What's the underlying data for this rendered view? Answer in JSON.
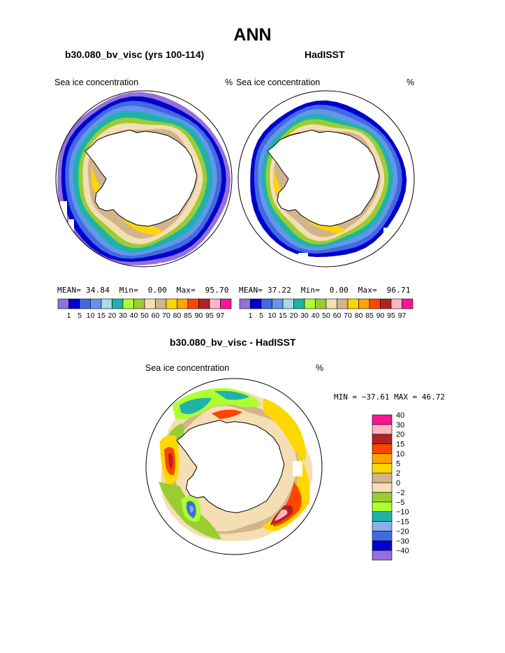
{
  "title": "ANN",
  "panels": [
    {
      "id": "model",
      "case_title": "b30.080_bv_visc (yrs 100-114)",
      "variable_label": "Sea ice concentration",
      "units": "%",
      "stats": {
        "mean_label": "MEAN=",
        "mean": "34.84",
        "min_label": "Min=",
        "min": "0.00",
        "max_label": "Max=",
        "max": "95.70"
      }
    },
    {
      "id": "obs",
      "case_title": "HadISST",
      "variable_label": "Sea ice concentration",
      "units": "%",
      "stats": {
        "mean_label": "MEAN=",
        "mean": "37.22",
        "min_label": "Min=",
        "min": "0.00",
        "max_label": "Max=",
        "max": "96.71"
      }
    },
    {
      "id": "diff",
      "case_title": "b30.080_bv_visc - HadISST",
      "variable_label": "Sea ice concentration",
      "units": "%",
      "stats_text": "MIN = −37.61 MAX =  46.72"
    }
  ],
  "chart_data": [
    {
      "type": "heatmap",
      "projection": "south-polar-stereographic",
      "title": "b30.080_bv_visc (yrs 100-114)",
      "variable": "Sea ice concentration",
      "units": "%",
      "mean": 34.84,
      "min": 0.0,
      "max": 95.7,
      "colorbar": {
        "levels": [
          1,
          5,
          10,
          15,
          20,
          30,
          40,
          50,
          60,
          70,
          80,
          85,
          90,
          95,
          97
        ],
        "colors": [
          "#9370DB",
          "#0000CD",
          "#4169E1",
          "#6495ED",
          "#ADD8E6",
          "#20B2AA",
          "#ADFF2F",
          "#9ACD32",
          "#F5DEB3",
          "#D2B48C",
          "#FFD700",
          "#FFA500",
          "#FF4500",
          "#B22222",
          "#FFB6C1",
          "#FF1493"
        ]
      },
      "rings": [
        {
          "value": 3,
          "color": "#9370DB"
        },
        {
          "value": 7,
          "color": "#0000CD"
        },
        {
          "value": 12,
          "color": "#4169E1"
        },
        {
          "value": 17,
          "color": "#6495ED"
        },
        {
          "value": 25,
          "color": "#20B2AA"
        },
        {
          "value": 45,
          "color": "#9ACD32"
        },
        {
          "value": 55,
          "color": "#F5DEB3"
        },
        {
          "value": 65,
          "color": "#D2B48C"
        }
      ]
    },
    {
      "type": "heatmap",
      "projection": "south-polar-stereographic",
      "title": "HadISST",
      "variable": "Sea ice concentration",
      "units": "%",
      "mean": 37.22,
      "min": 0.0,
      "max": 96.71,
      "colorbar": {
        "levels": [
          1,
          5,
          10,
          15,
          20,
          30,
          40,
          50,
          60,
          70,
          80,
          85,
          90,
          95,
          97
        ],
        "colors": [
          "#9370DB",
          "#0000CD",
          "#4169E1",
          "#6495ED",
          "#ADD8E6",
          "#20B2AA",
          "#ADFF2F",
          "#9ACD32",
          "#F5DEB3",
          "#D2B48C",
          "#FFD700",
          "#FFA500",
          "#FF4500",
          "#B22222",
          "#FFB6C1",
          "#FF1493"
        ]
      },
      "rings": [
        {
          "value": 7,
          "color": "#0000CD"
        },
        {
          "value": 12,
          "color": "#4169E1"
        },
        {
          "value": 17,
          "color": "#6495ED"
        },
        {
          "value": 25,
          "color": "#20B2AA"
        },
        {
          "value": 45,
          "color": "#9ACD32"
        },
        {
          "value": 55,
          "color": "#F5DEB3"
        },
        {
          "value": 65,
          "color": "#D2B48C"
        }
      ]
    },
    {
      "type": "heatmap",
      "projection": "south-polar-stereographic",
      "title": "b30.080_bv_visc - HadISST",
      "variable": "Sea ice concentration",
      "units": "%",
      "min": -37.61,
      "max": 46.72,
      "colorbar": {
        "levels": [
          "−40",
          "−30",
          "−20",
          "−15",
          "−10",
          "−5",
          "−2",
          "0",
          "2",
          "5",
          "10",
          "15",
          "20",
          "30",
          "40"
        ],
        "colors": [
          "#9370DB",
          "#0000CD",
          "#4169E1",
          "#87AFEB",
          "#20B2AA",
          "#ADFF2F",
          "#9ACD32",
          "#F5DEB3",
          "#D2B48C",
          "#FFD700",
          "#FFA500",
          "#FF4500",
          "#B22222",
          "#FFB6C1",
          "#FF1493"
        ]
      }
    }
  ]
}
